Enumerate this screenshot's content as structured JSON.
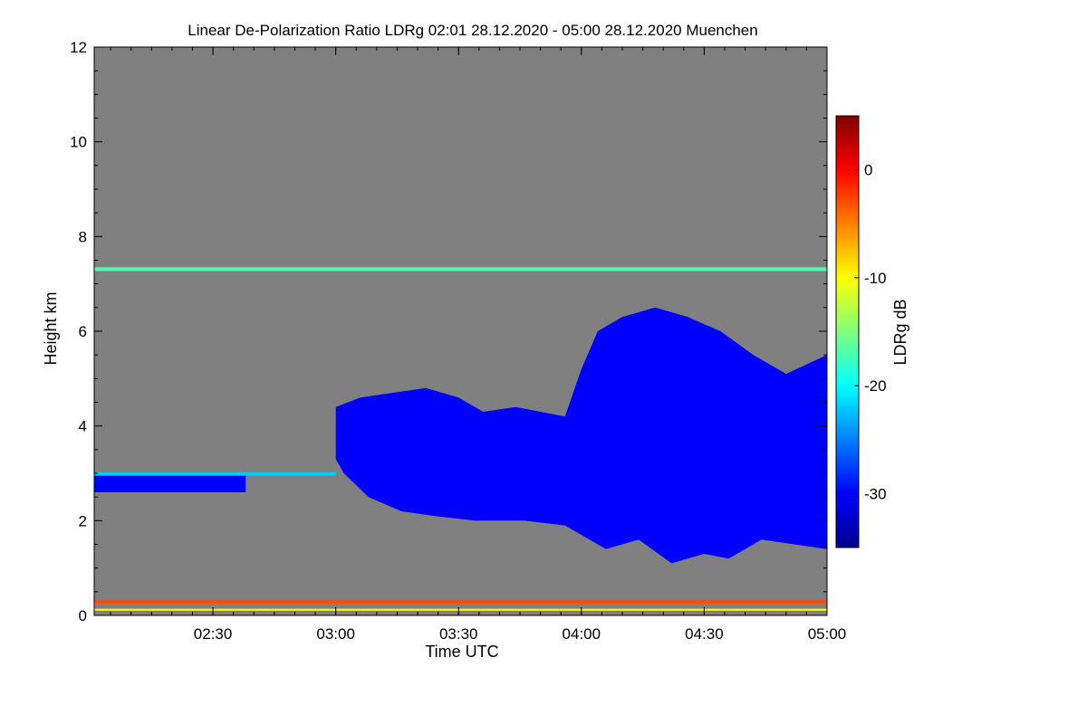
{
  "chart_data": {
    "type": "heatmap",
    "title": "Linear De-Polarization Ratio LDRg   02:01 28.12.2020 - 05:00 28.12.2020 Muenchen",
    "xlabel": "Time UTC",
    "ylabel": "Height km",
    "colorbar_label": "LDRg dB",
    "x_start": "02:01",
    "x_end": "05:00",
    "xticks": [
      {
        "value": 150,
        "label": "02:30"
      },
      {
        "value": 180,
        "label": "03:00"
      },
      {
        "value": 210,
        "label": "03:30"
      },
      {
        "value": 240,
        "label": "04:00"
      },
      {
        "value": 270,
        "label": "04:30"
      },
      {
        "value": 300,
        "label": "05:00"
      }
    ],
    "xlim": [
      121,
      300
    ],
    "ylim": [
      0,
      12
    ],
    "yticks": [
      0,
      2,
      4,
      6,
      8,
      10,
      12
    ],
    "colorbar_range": [
      -35,
      5
    ],
    "colorbar_ticks": [
      0,
      -10,
      -20,
      -30
    ],
    "background_color": "#808080",
    "colormap": [
      "#00008b",
      "#0000ff",
      "#0080ff",
      "#00ffff",
      "#80ff80",
      "#ffff00",
      "#ff8000",
      "#ff0000",
      "#800000"
    ],
    "features": [
      {
        "kind": "layer",
        "t0": 121,
        "t1": 300,
        "h0": 7.27,
        "h1": 7.35,
        "value": -17
      },
      {
        "kind": "layer",
        "t0": 121,
        "t1": 300,
        "h0": 0.25,
        "h1": 0.33,
        "value": -3
      },
      {
        "kind": "layer",
        "t0": 121,
        "t1": 300,
        "h0": 0.1,
        "h1": 0.14,
        "value": -10
      },
      {
        "kind": "layer",
        "t0": 121,
        "t1": 158,
        "h0": 2.6,
        "h1": 3.0,
        "value": -30
      },
      {
        "kind": "layer",
        "t0": 121,
        "t1": 180,
        "h0": 2.95,
        "h1": 3.02,
        "value": -22
      },
      {
        "kind": "cloud",
        "points": [
          [
            180,
            4.4
          ],
          [
            186,
            4.6
          ],
          [
            194,
            4.7
          ],
          [
            202,
            4.8
          ],
          [
            210,
            4.6
          ],
          [
            216,
            4.3
          ],
          [
            224,
            4.4
          ],
          [
            236,
            4.2
          ],
          [
            240,
            5.2
          ],
          [
            244,
            6.0
          ],
          [
            250,
            6.3
          ],
          [
            258,
            6.5
          ],
          [
            266,
            6.3
          ],
          [
            274,
            6.0
          ],
          [
            282,
            5.5
          ],
          [
            290,
            5.1
          ],
          [
            300,
            5.5
          ],
          [
            300,
            1.4
          ],
          [
            292,
            1.5
          ],
          [
            284,
            1.6
          ],
          [
            276,
            1.2
          ],
          [
            270,
            1.3
          ],
          [
            262,
            1.1
          ],
          [
            254,
            1.6
          ],
          [
            246,
            1.4
          ],
          [
            236,
            1.9
          ],
          [
            226,
            2.0
          ],
          [
            214,
            2.0
          ],
          [
            204,
            2.1
          ],
          [
            196,
            2.2
          ],
          [
            188,
            2.5
          ],
          [
            182,
            3.0
          ],
          [
            180,
            3.3
          ]
        ],
        "value": -30
      }
    ]
  }
}
